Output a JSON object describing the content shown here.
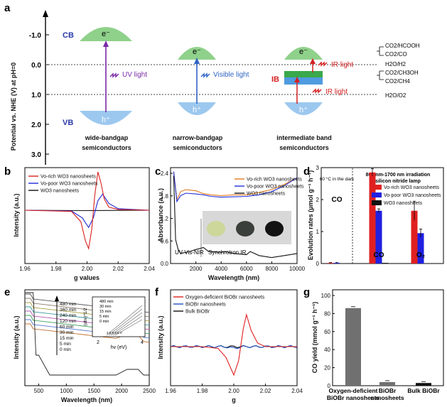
{
  "panel_labels": [
    "a",
    "b",
    "c",
    "d",
    "e",
    "f",
    "g"
  ],
  "panel_a": {
    "y_axis_label": "Potential vs. NHE (V) at pH=0",
    "y_ticks": [
      "-1.0",
      "0.0",
      "1.0",
      "2.0",
      "3.0"
    ],
    "cb": "CB",
    "vb": "VB",
    "electron": "e⁻",
    "hole": "h⁺",
    "ib": "IB",
    "light_uv": "UV light",
    "light_visible": "Visible light",
    "light_ir_1": "IR light",
    "light_ir_2": "IR light",
    "groups": [
      {
        "line1": "wide-bandgap",
        "line2": "semiconductors"
      },
      {
        "line1": "narrow-bandgap",
        "line2": "semiconductors"
      },
      {
        "line1": "intermediate band",
        "line2": "semiconductors"
      }
    ],
    "redox": [
      "CO2/HCOOH",
      "CO2/CO",
      "H2O/H2",
      "CO2/CH3OH",
      "CO2/CH4",
      "H2O/O2"
    ],
    "colors": {
      "cb": "#8fd18a",
      "vb": "#9cc8ef",
      "ib_green": "#3aa84b",
      "ib_blue": "#4f9be0",
      "uv": "#7a2aa6",
      "visible": "#2f63c4",
      "ir": "#d42020"
    }
  },
  "panel_b": {
    "chart_data": {
      "type": "line",
      "xlabel": "g values",
      "ylabel": "Intensity (a.u.)",
      "xlim": [
        1.96,
        2.04
      ],
      "x_ticks": [
        "1.96",
        "1.98",
        "2.00",
        "2.02",
        "2.04"
      ],
      "series": [
        {
          "name": "Vo-rich WO3 nanosheets",
          "color": "#d92020",
          "x": [
            1.96,
            1.99,
            1.996,
            1.999,
            2.001,
            2.003,
            2.005,
            2.007,
            2.009,
            2.011,
            2.014,
            2.02,
            2.04
          ],
          "y": [
            0,
            -0.03,
            -0.3,
            -0.8,
            -1.0,
            -0.5,
            0.4,
            1.0,
            0.7,
            0.3,
            0.08,
            0.02,
            0
          ]
        },
        {
          "name": "Vo-poor WO3 nanosheets",
          "color": "#2028d9",
          "x": [
            1.96,
            1.99,
            1.997,
            2.001,
            2.004,
            2.007,
            2.01,
            2.014,
            2.02,
            2.04
          ],
          "y": [
            0,
            -0.02,
            -0.2,
            -0.45,
            -0.2,
            0.25,
            0.42,
            0.18,
            0.04,
            0
          ]
        },
        {
          "name": "WO3 nanosheets",
          "color": "#111111",
          "x": [
            1.96,
            2.0,
            2.04
          ],
          "y": [
            0,
            -0.01,
            0
          ]
        }
      ]
    }
  },
  "panel_c": {
    "text_uvvisnir": "UV-Vis-NIR",
    "text_synchrotron": "Synchrotron IR",
    "chart_data": {
      "type": "line",
      "xlabel": "Wavelength (nm)",
      "ylabel": "Absorbance (a.u.)",
      "xlim": [
        0,
        10000
      ],
      "ylim": [
        0.0,
        2.4
      ],
      "x_ticks": [
        "2000",
        "4000",
        "6000",
        "8000",
        "10000"
      ],
      "y_ticks": [
        "0.0",
        "0.6",
        "1.2",
        "1.8",
        "2.4"
      ],
      "series": [
        {
          "name": "Vo-rich WO3 nanosheets",
          "color": "#e07a20",
          "x": [
            250,
            500,
            800,
            1200,
            2000,
            2600,
            3200,
            4000,
            5000,
            6000,
            7000,
            8000,
            9000,
            10000
          ],
          "y": [
            2.3,
            1.6,
            1.8,
            1.85,
            1.82,
            1.75,
            1.72,
            1.7,
            1.72,
            1.72,
            1.78,
            1.85,
            1.98,
            2.15
          ]
        },
        {
          "name": "Vo-poor WO3 nanosheets",
          "color": "#2030d9",
          "x": [
            250,
            500,
            800,
            1200,
            2000,
            2600,
            3200,
            4000,
            5000,
            6000,
            7000,
            8000,
            9000,
            10000
          ],
          "y": [
            2.3,
            1.55,
            1.7,
            1.76,
            1.74,
            1.72,
            1.68,
            1.66,
            1.67,
            1.68,
            1.72,
            1.8,
            1.95,
            2.15
          ]
        },
        {
          "name": "WO3 nanosheets",
          "color": "#111111",
          "x": [
            250,
            400,
            600,
            800,
            1500,
            2000,
            2600,
            3000,
            4000,
            4300,
            5000,
            6000,
            6300,
            7000,
            8000,
            9000,
            10000
          ],
          "y": [
            2.2,
            0.6,
            0.35,
            0.25,
            0.3,
            0.35,
            0.4,
            0.3,
            0.28,
            0.3,
            0.25,
            0.22,
            0.3,
            0.2,
            0.15,
            0.2,
            0.25
          ]
        }
      ]
    }
  },
  "panel_d": {
    "note_dark": "60 °C in the dark",
    "note_lamp_1": "800 nm-1700 nm irradiation",
    "note_lamp_2": "silicon nitride lamp",
    "chart_data": {
      "type": "bar",
      "ylabel": "Evolution rates (μmol g⁻¹ h⁻¹)",
      "categories": [
        "CO",
        "CO",
        "O2"
      ],
      "ylim": [
        0,
        3
      ],
      "y_ticks": [
        "0",
        "1",
        "2",
        "3"
      ],
      "series": [
        {
          "name": "Vo-rich WO3 nanosheets",
          "color": "#e02020",
          "values": [
            0.02,
            2.85,
            1.65
          ],
          "err": [
            0.01,
            0.12,
            0.3
          ]
        },
        {
          "name": "Vo-poor WO3 nanosheets",
          "color": "#2020e0",
          "values": [
            0.02,
            1.65,
            0.95
          ],
          "err": [
            0.01,
            0.06,
            0.13
          ]
        },
        {
          "name": "WO3 nanosheets",
          "color": "#111111",
          "values": [
            0.01,
            0.02,
            0.01
          ],
          "err": [
            0.0,
            0.0,
            0.0
          ]
        }
      ]
    }
  },
  "panel_e": {
    "times": [
      "480 min",
      "360 min",
      "240 min",
      "120 min",
      "60 min",
      "30 min",
      "15 min",
      "5 min",
      "0 min"
    ],
    "inset_times": [
      "480 min",
      "30 min",
      "15 min",
      "5 min",
      "0 min"
    ],
    "inset_xlabel": "hv (eV)",
    "inset_ylabel": "(αhv)^1/2",
    "inset_ticks": [
      "2",
      "4"
    ],
    "inset_values": "2.2.9 2.6 V",
    "chart_data": {
      "type": "line",
      "xlabel": "Wavelength (nm)",
      "ylabel": "Intensity (a.u.)",
      "xlim": [
        250,
        2500
      ],
      "x_ticks": [
        "500",
        "1000",
        "1500",
        "2000",
        "2500"
      ]
    }
  },
  "panel_f": {
    "chart_data": {
      "type": "line",
      "xlabel": "g",
      "ylabel": "Intensity (a.u.)",
      "xlim": [
        1.96,
        2.04
      ],
      "x_ticks": [
        "1.96",
        "1.98",
        "2.00",
        "2.02",
        "2.04"
      ],
      "series": [
        {
          "name": "Oxygen-deficient BiOBr nanosheets",
          "color": "#e02020",
          "x": [
            1.96,
            1.98,
            1.99,
            1.995,
            2.0,
            2.003,
            2.006,
            2.008,
            2.011,
            2.015,
            2.02,
            2.04
          ],
          "y": [
            0,
            0,
            -0.05,
            -0.3,
            -0.8,
            -0.4,
            0.5,
            0.9,
            0.45,
            0.1,
            0,
            0
          ]
        },
        {
          "name": "BiOBr nanosheets",
          "color": "#2050c0",
          "x": [
            1.96,
            2.0,
            2.04
          ],
          "y": [
            0,
            -0.02,
            0
          ]
        },
        {
          "name": "Bulk BiOBr",
          "color": "#111111",
          "x": [
            1.96,
            2.0,
            2.04
          ],
          "y": [
            0,
            0.01,
            0
          ]
        }
      ]
    }
  },
  "panel_g": {
    "chart_data": {
      "type": "bar",
      "ylabel": "CO yield (mmol g⁻¹ h⁻¹)",
      "categories": [
        "Oxygen-deficient BiOBr nanosheets",
        "BiOBr nanosheets",
        "Bulk BiOBr"
      ],
      "values": [
        86,
        4,
        3
      ],
      "ylim": [
        0,
        100
      ],
      "y_ticks": [
        "0",
        "20",
        "40",
        "60",
        "80",
        "100"
      ],
      "color": "#707070"
    }
  }
}
